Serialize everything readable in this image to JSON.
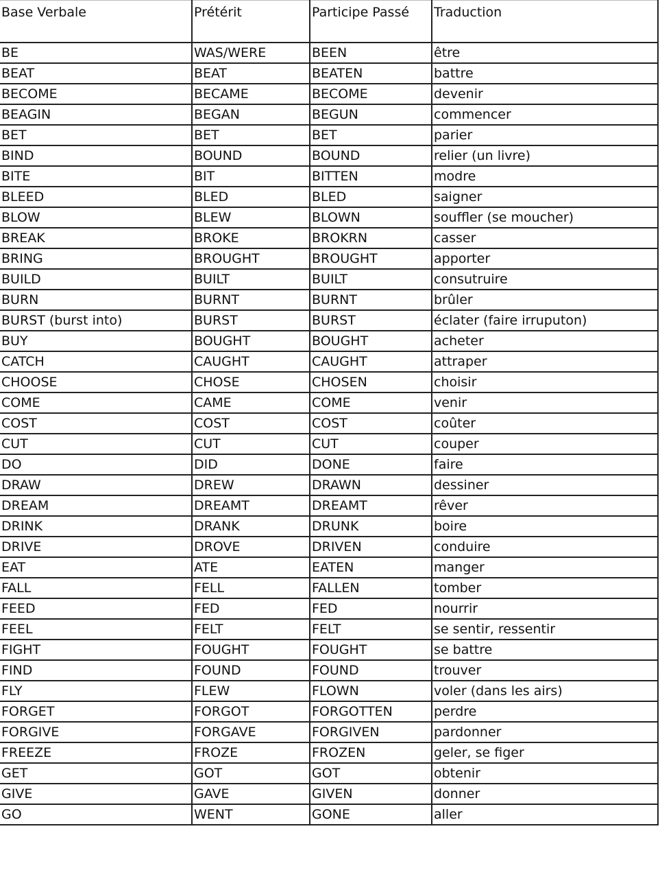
{
  "headers": [
    "Base Verbale",
    "Prétérit",
    "Participe Passé",
    "Traduction"
  ],
  "rows": [
    [
      "BE",
      "WAS/WERE",
      "BEEN",
      "être"
    ],
    [
      "BEAT",
      "BEAT",
      "BEATEN",
      "battre"
    ],
    [
      "BECOME",
      "BECAME",
      "BECOME",
      "devenir"
    ],
    [
      "BEAGIN",
      "BEGAN",
      "BEGUN",
      "commencer"
    ],
    [
      "BET",
      "BET",
      "BET",
      "parier"
    ],
    [
      "BIND",
      "BOUND",
      "BOUND",
      "relier (un livre)"
    ],
    [
      "BITE",
      "BIT",
      "BITTEN",
      "modre"
    ],
    [
      "BLEED",
      "BLED",
      "BLED",
      "saigner"
    ],
    [
      "BLOW",
      "BLEW",
      "BLOWN",
      "souffler (se moucher)"
    ],
    [
      "BREAK",
      "BROKE",
      "BROKRN",
      "casser"
    ],
    [
      "BRING",
      "BROUGHT",
      "BROUGHT",
      "apporter"
    ],
    [
      "BUILD",
      "BUILT",
      "BUILT",
      "consutruire"
    ],
    [
      "BURN",
      "BURNT",
      "BURNT",
      "brûler"
    ],
    [
      "BURST (burst into)",
      "BURST",
      "BURST",
      "éclater (faire irruputon)"
    ],
    [
      "BUY",
      "BOUGHT",
      "BOUGHT",
      "acheter"
    ],
    [
      "CATCH",
      "CAUGHT",
      "CAUGHT",
      "attraper"
    ],
    [
      "CHOOSE",
      "CHOSE",
      "CHOSEN",
      "choisir"
    ],
    [
      "COME",
      "CAME",
      "COME",
      "venir"
    ],
    [
      "COST",
      "COST",
      "COST",
      "coûter"
    ],
    [
      "CUT",
      "CUT",
      "CUT",
      "couper"
    ],
    [
      "DO",
      "DID",
      "DONE",
      "faire"
    ],
    [
      "DRAW",
      "DREW",
      "DRAWN",
      "dessiner"
    ],
    [
      "DREAM",
      "DREAMT",
      "DREAMT",
      "rêver"
    ],
    [
      "DRINK",
      "DRANK",
      "DRUNK",
      "boire"
    ],
    [
      "DRIVE",
      "DROVE",
      "DRIVEN",
      "conduire"
    ],
    [
      "EAT",
      "ATE",
      "EATEN",
      "manger"
    ],
    [
      "FALL",
      "FELL",
      "FALLEN",
      "tomber"
    ],
    [
      "FEED",
      "FED",
      "FED",
      "nourrir"
    ],
    [
      "FEEL",
      "FELT",
      "FELT",
      "se sentir, ressentir"
    ],
    [
      "FIGHT",
      "FOUGHT",
      "FOUGHT",
      "se battre"
    ],
    [
      "FIND",
      "FOUND",
      "FOUND",
      "trouver"
    ],
    [
      "FLY",
      "FLEW",
      "FLOWN",
      "voler (dans les airs)"
    ],
    [
      "FORGET",
      "FORGOT",
      "FORGOTTEN",
      "perdre"
    ],
    [
      "FORGIVE",
      "FORGAVE",
      "FORGIVEN",
      "pardonner"
    ],
    [
      "FREEZE",
      "FROZE",
      "FROZEN",
      "geler, se figer"
    ],
    [
      "GET",
      "GOT",
      "GOT",
      "obtenir"
    ],
    [
      "GIVE",
      "GAVE",
      "GIVEN",
      "donner"
    ],
    [
      "GO",
      "WENT",
      "GONE",
      "aller"
    ]
  ]
}
